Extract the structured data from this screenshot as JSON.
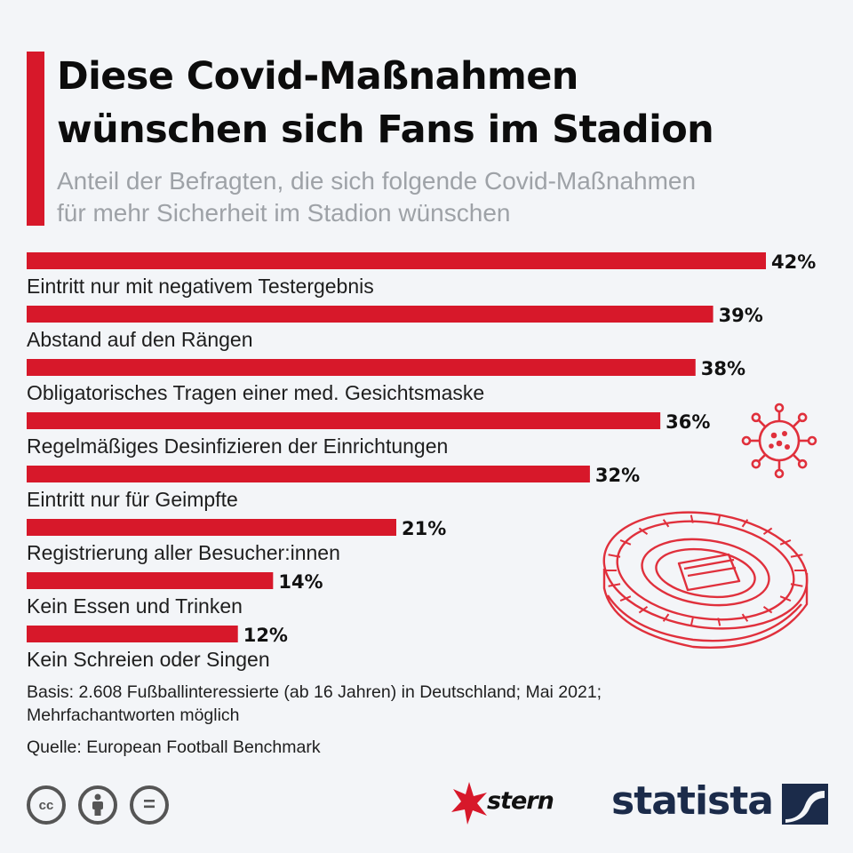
{
  "header": {
    "title_lines": [
      "Diese Covid-Maßnahmen",
      "wünschen sich Fans im Stadion"
    ],
    "subtitle_lines": [
      "Anteil der Befragten, die sich folgende Covid-Maßnahmen",
      "für mehr Sicherheit im Stadion wünschen"
    ]
  },
  "chart_data": {
    "type": "bar",
    "orientation": "horizontal",
    "categories": [
      "Eintritt nur mit negativem Testergebnis",
      "Abstand auf den Rängen",
      "Obligatorisches Tragen einer med. Gesichtsmaske",
      "Regelmäßiges Desinfizieren der Einrichtungen",
      "Eintritt nur für Geimpfte",
      "Registrierung aller Besucher:innen",
      "Kein Essen und Trinken",
      "Kein Schreien oder Singen"
    ],
    "values": [
      42,
      39,
      38,
      36,
      32,
      21,
      14,
      12
    ],
    "value_labels": [
      "42%",
      "39%",
      "38%",
      "36%",
      "32%",
      "21%",
      "14%",
      "12%"
    ],
    "unit": "%",
    "bar_color": "#d7182a",
    "grid": false,
    "legend": "none"
  },
  "footer": {
    "basis_lines": [
      "Basis: 2.608 Fußballinteressierte (ab 16 Jahren) in Deutschland; Mai 2021;",
      "Mehrfachantworten möglich"
    ],
    "source": "Quelle: European Football Benchmark"
  },
  "icons": {
    "license": [
      "cc-icon",
      "by-icon",
      "nd-icon"
    ],
    "cc_text": "cc",
    "nd_text": "="
  },
  "brand": {
    "stern": "stern",
    "statista": "statista",
    "accent_color": "#d7182a",
    "statista_color": "#1b2b4a"
  }
}
